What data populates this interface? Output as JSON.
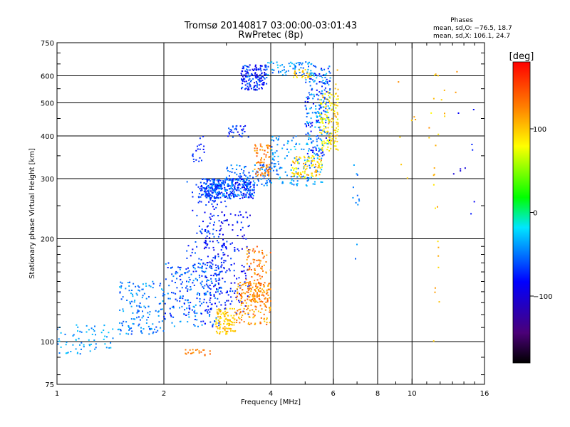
{
  "chart_data": {
    "type": "scatter",
    "title": "Tromsø 20140817 03:00:00-03:01:43",
    "subtitle": "RwPretec (8p)",
    "xlabel": "Frequency [MHz]",
    "ylabel": "Stationary phase Virtual Height [km]",
    "x_scale": "log",
    "y_scale": "log",
    "xlim": [
      1,
      16
    ],
    "ylim": [
      75,
      750
    ],
    "x_ticks": [
      1,
      2,
      4,
      6,
      8,
      10,
      16
    ],
    "x_tick_labels": [
      "1",
      "2",
      "4",
      "6",
      "8",
      "10",
      "16"
    ],
    "y_ticks": [
      75,
      100,
      200,
      300,
      400,
      500,
      600,
      750
    ],
    "y_tick_labels": [
      "75",
      "100",
      "200",
      "300",
      "400",
      "500",
      "600",
      "750"
    ],
    "grid": true,
    "phase_box": {
      "heading": "Phases",
      "line1": "mean, sd,O: −76.5, 18.7",
      "line2": "mean, sd,X: 106.1, 24.7"
    },
    "colorbar": {
      "label": "[deg]",
      "min": -180,
      "max": 180,
      "ticks": [
        100,
        0,
        -100
      ],
      "tick_labels": [
        "100",
        "0",
        "−100"
      ]
    },
    "clusters": [
      {
        "n": 70,
        "x": [
          1.0,
          1.5
        ],
        "y": [
          92,
          112
        ],
        "p": [
          -70,
          -40
        ]
      },
      {
        "n": 140,
        "x": [
          1.5,
          2.0
        ],
        "y": [
          105,
          150
        ],
        "p": [
          -85,
          -45
        ]
      },
      {
        "n": 240,
        "x": [
          2.0,
          2.9
        ],
        "y": [
          110,
          170
        ],
        "p": [
          -100,
          -50
        ]
      },
      {
        "n": 220,
        "x": [
          2.6,
          3.5
        ],
        "y": [
          120,
          240
        ],
        "p": [
          -120,
          -70
        ]
      },
      {
        "n": 90,
        "x": [
          2.3,
          3.0
        ],
        "y": [
          160,
          300
        ],
        "p": [
          -110,
          -70
        ]
      },
      {
        "n": 110,
        "x": [
          2.8,
          3.2
        ],
        "y": [
          105,
          125
        ],
        "p": [
          85,
          120
        ]
      },
      {
        "n": 180,
        "x": [
          3.2,
          4.0
        ],
        "y": [
          112,
          150
        ],
        "p": [
          100,
          150
        ]
      },
      {
        "n": 100,
        "x": [
          3.4,
          4.0
        ],
        "y": [
          130,
          190
        ],
        "p": [
          110,
          150
        ]
      },
      {
        "n": 320,
        "x": [
          2.6,
          3.6
        ],
        "y": [
          262,
          300
        ],
        "p": [
          -110,
          -50
        ]
      },
      {
        "n": 60,
        "x": [
          2.5,
          2.9
        ],
        "y": [
          255,
          300
        ],
        "p": [
          -95,
          -75
        ]
      },
      {
        "n": 100,
        "x": [
          3.0,
          4.0
        ],
        "y": [
          285,
          330
        ],
        "p": [
          -90,
          -50
        ]
      },
      {
        "n": 70,
        "x": [
          3.6,
          4.0
        ],
        "y": [
          305,
          380
        ],
        "p": [
          110,
          150
        ]
      },
      {
        "n": 140,
        "x": [
          4.0,
          5.6
        ],
        "y": [
          285,
          400
        ],
        "p": [
          -80,
          -40
        ]
      },
      {
        "n": 90,
        "x": [
          4.6,
          5.6
        ],
        "y": [
          300,
          350
        ],
        "p": [
          60,
          130
        ]
      },
      {
        "n": 230,
        "x": [
          5.0,
          5.9
        ],
        "y": [
          350,
          640
        ],
        "p": [
          -110,
          -40
        ]
      },
      {
        "n": 130,
        "x": [
          5.5,
          6.2
        ],
        "y": [
          360,
          540
        ],
        "p": [
          60,
          115
        ]
      },
      {
        "n": 160,
        "x": [
          3.3,
          3.9
        ],
        "y": [
          545,
          645
        ],
        "p": [
          -120,
          -60
        ]
      },
      {
        "n": 70,
        "x": [
          3.9,
          5.4
        ],
        "y": [
          600,
          660
        ],
        "p": [
          -80,
          -40
        ]
      },
      {
        "n": 25,
        "x": [
          4.6,
          5.2
        ],
        "y": [
          590,
          625
        ],
        "p": [
          80,
          120
        ]
      },
      {
        "n": 20,
        "x": [
          2.3,
          2.7
        ],
        "y": [
          90,
          95
        ],
        "p": [
          120,
          150
        ]
      },
      {
        "n": 30,
        "x": [
          3.0,
          3.5
        ],
        "y": [
          395,
          430
        ],
        "p": [
          -110,
          -70
        ]
      },
      {
        "n": 20,
        "x": [
          2.4,
          2.6
        ],
        "y": [
          330,
          400
        ],
        "p": [
          -100,
          -80
        ]
      },
      {
        "n": 12,
        "x": [
          6.0,
          6.2
        ],
        "y": [
          440,
          640
        ],
        "p": [
          90,
          120
        ]
      },
      {
        "n": 12,
        "x": [
          6.8,
          7.1
        ],
        "y": [
          140,
          330
        ],
        "p": [
          -80,
          -50
        ]
      },
      {
        "n": 18,
        "x": [
          9.0,
          13.5
        ],
        "y": [
          300,
          650
        ],
        "p": [
          80,
          130
        ]
      },
      {
        "n": 18,
        "x": [
          11.5,
          12.0
        ],
        "y": [
          100,
          620
        ],
        "p": [
          85,
          125
        ]
      },
      {
        "n": 10,
        "x": [
          13.0,
          15.0
        ],
        "y": [
          230,
          500
        ],
        "p": [
          -120,
          -80
        ]
      }
    ]
  }
}
